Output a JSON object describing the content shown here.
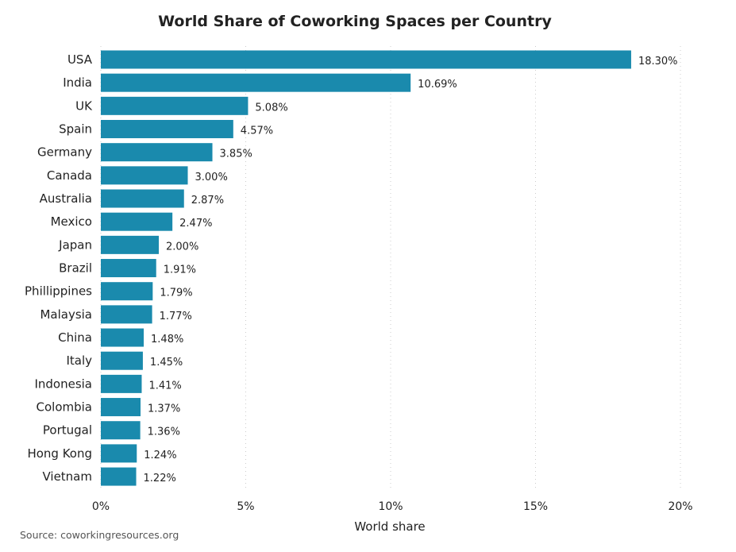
{
  "chart_data": {
    "type": "bar",
    "orientation": "horizontal",
    "title": "World Share of Coworking Spaces per Country",
    "xlabel": "World share",
    "ylabel": "",
    "categories": [
      "USA",
      "India",
      "UK",
      "Spain",
      "Germany",
      "Canada",
      "Australia",
      "Mexico",
      "Japan",
      "Brazil",
      "Phillippines",
      "Malaysia",
      "China",
      "Italy",
      "Indonesia",
      "Colombia",
      "Portugal",
      "Hong Kong",
      "Vietnam"
    ],
    "values": [
      18.3,
      10.69,
      5.08,
      4.57,
      3.85,
      3.0,
      2.87,
      2.47,
      2.0,
      1.91,
      1.79,
      1.77,
      1.48,
      1.45,
      1.41,
      1.37,
      1.36,
      1.24,
      1.22
    ],
    "data_labels": [
      "18.30%",
      "10.69%",
      "5.08%",
      "4.57%",
      "3.85%",
      "3.00%",
      "2.87%",
      "2.47%",
      "2.00%",
      "1.91%",
      "1.79%",
      "1.77%",
      "1.48%",
      "1.45%",
      "1.41%",
      "1.37%",
      "1.36%",
      "1.24%",
      "1.22%"
    ],
    "xlim": [
      0,
      20
    ],
    "x_ticks": [
      "0%",
      "5%",
      "10%",
      "15%",
      "20%"
    ],
    "x_tick_values": [
      0,
      5,
      10,
      15,
      20
    ],
    "grid": "vertical dotted",
    "legend": "none",
    "bar_color": "#1a8aad",
    "source": "Source: coworkingresources.org"
  }
}
